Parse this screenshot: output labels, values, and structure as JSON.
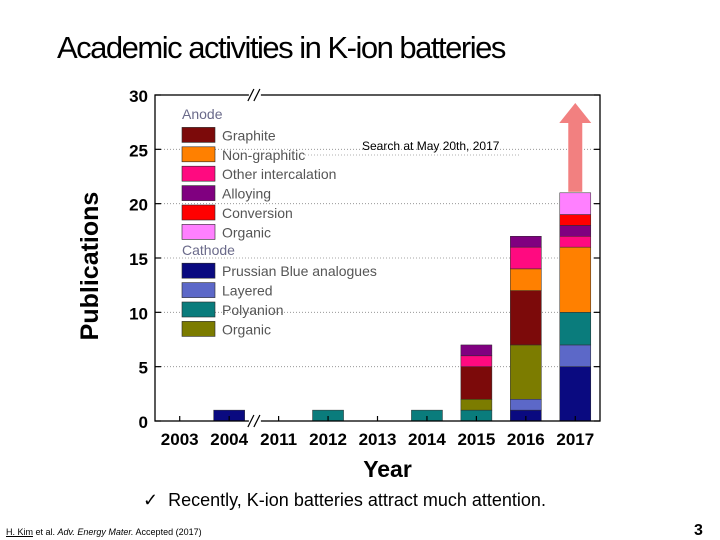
{
  "slide": {
    "title": "Academic activities in K-ion batteries",
    "bullet_mark": "✓",
    "bullet_text": "Recently, K-ion batteries attract much attention.",
    "citation_authors": "H. Kim",
    "citation_etal": " et al. ",
    "citation_journal": "Adv. Energy Mater.",
    "citation_status": " Accepted (2017)",
    "page_number": "3"
  },
  "chart_data": {
    "type": "bar",
    "stacked": true,
    "title": "",
    "xlabel": "Year",
    "ylabel": "Publications",
    "ylim": [
      0,
      30
    ],
    "yticks": [
      0,
      5,
      10,
      15,
      20,
      25,
      30
    ],
    "categories": [
      "2003",
      "2004",
      "2011",
      "2012",
      "2013",
      "2014",
      "2015",
      "2016",
      "2017"
    ],
    "axis_break_between": [
      "2004",
      "2011"
    ],
    "annotation": "Search at May 20th, 2017",
    "legend_groups": [
      "Anode",
      "Cathode"
    ],
    "colors": {
      "Prussian Blue analogues": "#0a0a80",
      "Layered": "#5c68c8",
      "Polyanion": "#0a7c7c",
      "Cathode Organic": "#7c7c00",
      "Graphite": "#7c0a0a",
      "Non-graphitic": "#ff8000",
      "Other intercalation": "#ff0a80",
      "Alloying": "#800080",
      "Conversion": "#ff0000",
      "Anode Organic": "#ff80ff",
      "arrow": "#f28080"
    },
    "series": [
      {
        "name": "Prussian Blue analogues",
        "group": "Cathode",
        "label": "Prussian Blue analogues",
        "values": [
          0,
          1,
          0,
          0,
          0,
          0,
          0,
          1,
          5
        ]
      },
      {
        "name": "Layered",
        "group": "Cathode",
        "label": "Layered",
        "values": [
          0,
          0,
          0,
          0,
          0,
          0,
          0,
          1,
          2
        ]
      },
      {
        "name": "Polyanion",
        "group": "Cathode",
        "label": "Polyanion",
        "values": [
          0,
          0,
          0,
          1,
          0,
          1,
          1,
          0,
          3
        ]
      },
      {
        "name": "Cathode Organic",
        "group": "Cathode",
        "label": "Organic",
        "values": [
          0,
          0,
          0,
          0,
          0,
          0,
          1,
          5,
          0
        ]
      },
      {
        "name": "Graphite",
        "group": "Anode",
        "label": "Graphite",
        "values": [
          0,
          0,
          0,
          0,
          0,
          0,
          3,
          5,
          0
        ]
      },
      {
        "name": "Non-graphitic",
        "group": "Anode",
        "label": "Non-graphitic",
        "values": [
          0,
          0,
          0,
          0,
          0,
          0,
          0,
          2,
          6
        ]
      },
      {
        "name": "Other intercalation",
        "group": "Anode",
        "label": "Other intercalation",
        "values": [
          0,
          0,
          0,
          0,
          0,
          0,
          1,
          2,
          1
        ]
      },
      {
        "name": "Alloying",
        "group": "Anode",
        "label": "Alloying",
        "values": [
          0,
          0,
          0,
          0,
          0,
          0,
          1,
          1,
          1
        ]
      },
      {
        "name": "Conversion",
        "group": "Anode",
        "label": "Conversion",
        "values": [
          0,
          0,
          0,
          0,
          0,
          0,
          0,
          0,
          1
        ]
      },
      {
        "name": "Anode Organic",
        "group": "Anode",
        "label": "Organic",
        "values": [
          0,
          0,
          0,
          0,
          0,
          0,
          0,
          0,
          2
        ]
      }
    ],
    "legend_order": {
      "Anode": [
        "Graphite",
        "Non-graphitic",
        "Other intercalation",
        "Alloying",
        "Conversion",
        "Anode Organic"
      ],
      "Cathode": [
        "Prussian Blue analogues",
        "Layered",
        "Polyanion",
        "Cathode Organic"
      ]
    }
  }
}
